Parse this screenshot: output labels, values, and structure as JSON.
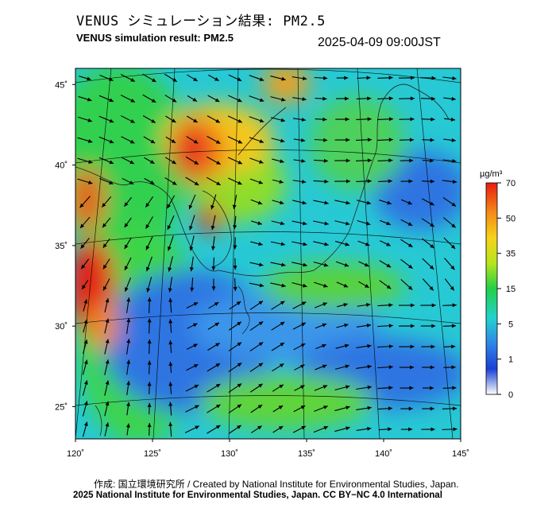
{
  "header": {
    "title_jp": "VENUS シミュレーション結果: PM2.5",
    "title_en": "VENUS simulation result: PM2.5",
    "timestamp": "2025-04-09 09:00JST"
  },
  "map": {
    "lat_labels": [
      "45˚",
      "40˚",
      "35˚",
      "30˚",
      "25˚"
    ],
    "lon_labels": [
      "120˚",
      "125˚",
      "130˚",
      "135˚",
      "140˚",
      "145˚"
    ],
    "lat_values": [
      45,
      40,
      35,
      30,
      25
    ],
    "lon_values": [
      120,
      125,
      130,
      135,
      140,
      145
    ],
    "lat_range": [
      23,
      46
    ],
    "lon_range": [
      120,
      145
    ]
  },
  "colorbar": {
    "unit": "µg/m³",
    "tick_labels": [
      "70",
      "50",
      "35",
      "15",
      "5",
      "1",
      "0"
    ],
    "colors": [
      "#ffffff",
      "#1c3fd6",
      "#2e86e6",
      "#23d2d0",
      "#22d046",
      "#b7e51d",
      "#f7d21a",
      "#f58a18",
      "#e81c10"
    ]
  },
  "footer": {
    "credit": "作成: 国立環境研究所 / Created by National Institute for Environmental Studies, Japan.",
    "license": "2025 National Institute for Environmental Studies, Japan. CC BY−NC 4.0 International"
  }
}
